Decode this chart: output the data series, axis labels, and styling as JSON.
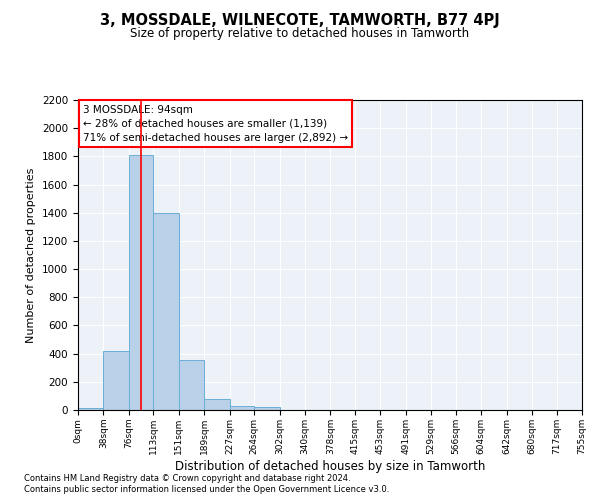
{
  "title": "3, MOSSDALE, WILNECOTE, TAMWORTH, B77 4PJ",
  "subtitle": "Size of property relative to detached houses in Tamworth",
  "xlabel": "Distribution of detached houses by size in Tamworth",
  "ylabel": "Number of detached properties",
  "bar_color": "#b8d0e8",
  "bar_edge_color": "#6aaed6",
  "background_color": "#edf2f9",
  "grid_color": "#ffffff",
  "annotation_text_line1": "3 MOSSDALE: 94sqm",
  "annotation_text_line2": "← 28% of detached houses are smaller (1,139)",
  "annotation_text_line3": "71% of semi-detached houses are larger (2,892) →",
  "redline_x": 94,
  "bin_edges": [
    0,
    38,
    76,
    113,
    151,
    189,
    227,
    264,
    302,
    340,
    378,
    415,
    453,
    491,
    529,
    566,
    604,
    642,
    680,
    717,
    755
  ],
  "bin_counts": [
    15,
    420,
    1810,
    1400,
    355,
    80,
    25,
    20,
    0,
    0,
    0,
    0,
    0,
    0,
    0,
    0,
    0,
    0,
    0,
    0
  ],
  "ylim": [
    0,
    2200
  ],
  "yticks": [
    0,
    200,
    400,
    600,
    800,
    1000,
    1200,
    1400,
    1600,
    1800,
    2000,
    2200
  ],
  "footer_line1": "Contains HM Land Registry data © Crown copyright and database right 2024.",
  "footer_line2": "Contains public sector information licensed under the Open Government Licence v3.0."
}
